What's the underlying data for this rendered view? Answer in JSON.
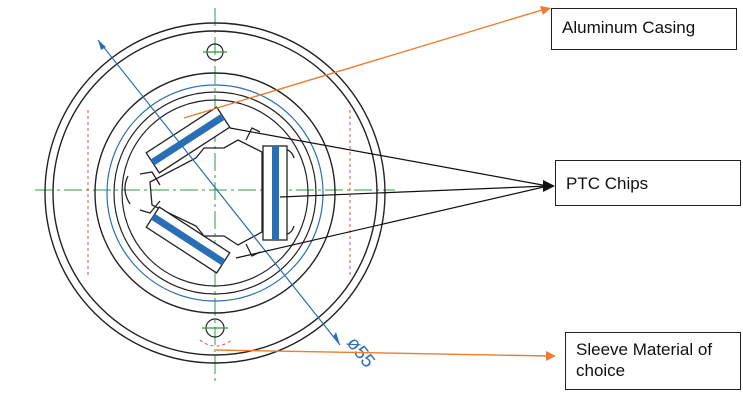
{
  "labels": {
    "aluminum_casing": "Aluminum Casing",
    "ptc_chips": "PTC Chips",
    "sleeve": "Sleeve Material of choice"
  },
  "dimension": {
    "diameter": "ø55"
  },
  "colors": {
    "orange_leader": "#ed7d31",
    "black_leader": "#111111",
    "blue_drawing": "#2a6fb5",
    "centerline_green": "#2e9c3a",
    "hidden_line_red": "#d9534f",
    "outline": "#222222"
  }
}
